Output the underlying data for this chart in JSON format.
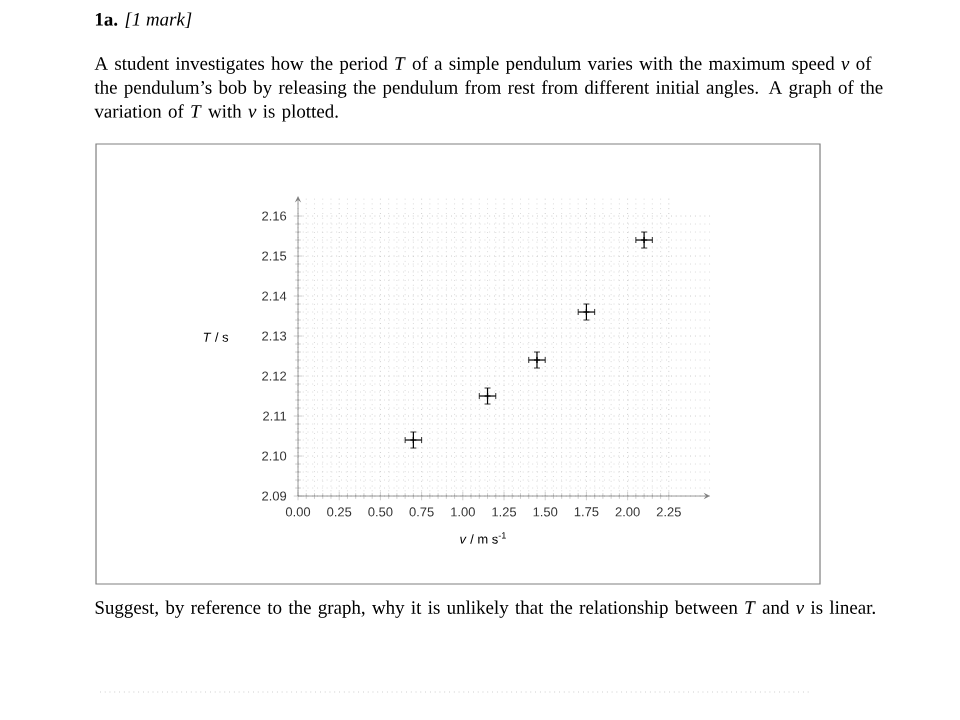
{
  "chart_data": {
    "type": "scatter",
    "title": "**1a.** *[1 mark]*",
    "subtitle": "A student investigates how the period *T* of a simple pendulum varies with the maximum speed *v* of the pendulum’s bob by releasing the pendulum from rest from different initial angles. A graph of the variation of *T* with *v* is plotted.",
    "annotations": [
      "Suggest, by reference to the graph, why it is unlikely that the relationship between *T* and *v* is linear."
    ],
    "xlabel": "*v* / m s$^{-1}$",
    "ylabel": "*T* / s",
    "x": [
      0.7,
      1.15,
      1.45,
      1.75,
      2.1
    ],
    "series": [
      {
        "color": "#000000",
        "values": [
          2.104,
          2.115,
          2.124,
          2.136,
          2.154
        ],
        "errors": [
          0.002,
          0.002,
          0.002,
          0.002,
          0.002
        ],
        "xerrors": [
          0.05,
          0.05,
          0.05,
          0.05,
          0.05
        ]
      }
    ],
    "xlim": [
      0,
      2.5
    ],
    "ylim": [
      2.09,
      2.165
    ],
    "xticks": [
      {
        "value": 0,
        "label": "0.00"
      },
      0.25,
      {
        "value": 0.5,
        "label": "0.50"
      },
      0.75,
      {
        "value": 1,
        "label": "1.00"
      },
      1.25,
      {
        "value": 1.5,
        "label": "1.50"
      },
      1.75,
      {
        "value": 2,
        "label": "2.00"
      },
      2.25
    ],
    "yticks": [
      2.09,
      {
        "value": 2.1,
        "label": "2.10"
      },
      2.11,
      2.12,
      2.13,
      2.14,
      2.15,
      2.16
    ],
    "grid": true,
    "marker": "cross"
  }
}
